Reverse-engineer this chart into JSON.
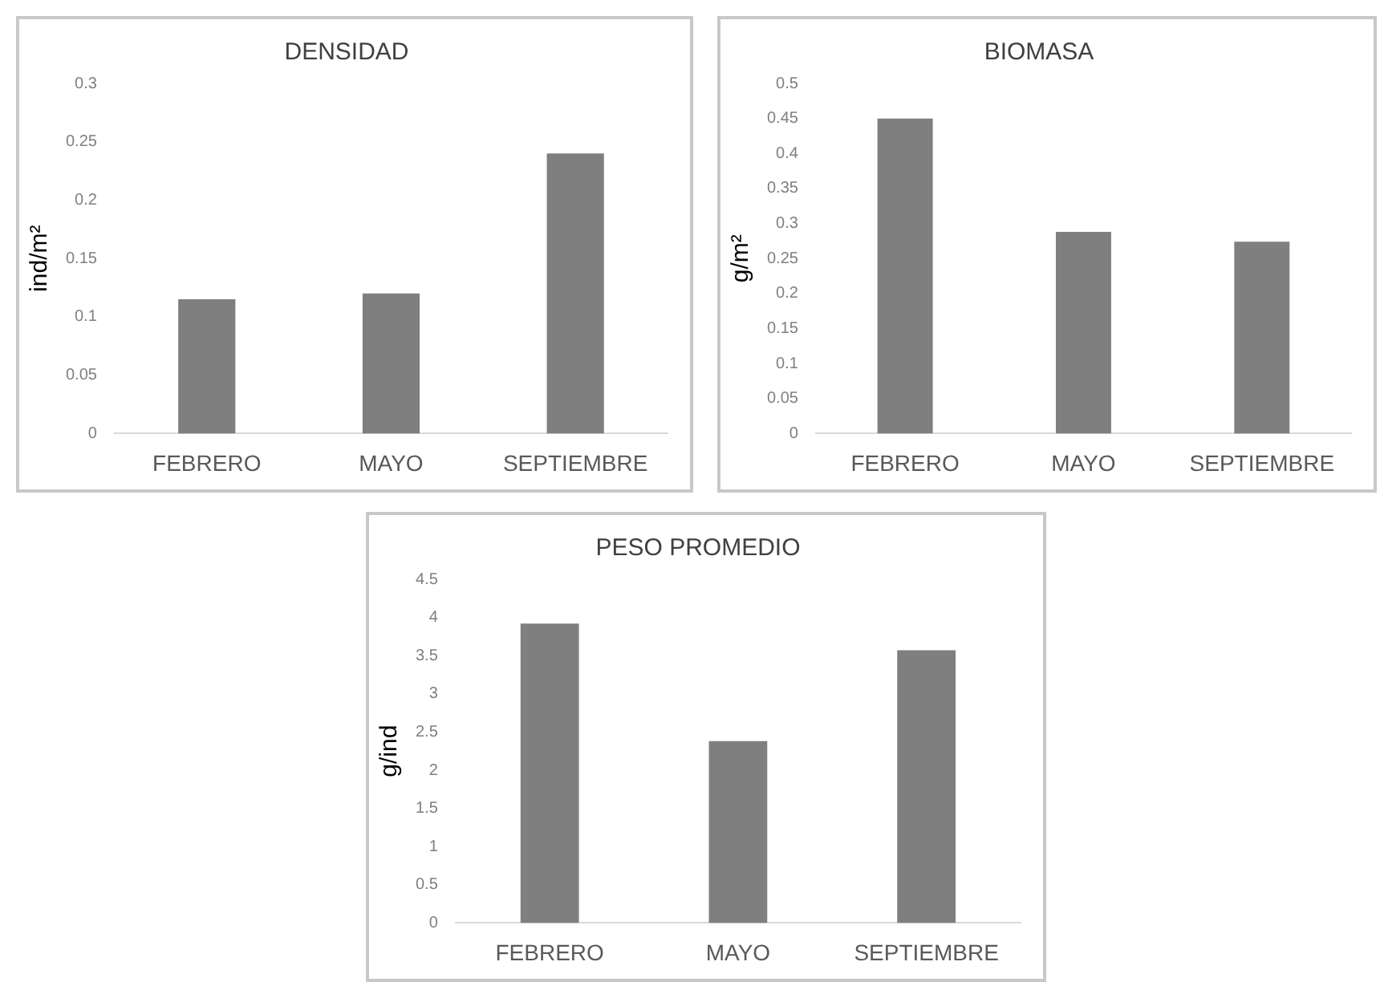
{
  "chart_data": [
    {
      "type": "bar",
      "title": "DENSIDAD",
      "ylabel": "ind/m²",
      "categories": [
        "FEBRERO",
        "MAYO",
        "SEPTIEMBRE"
      ],
      "values": [
        0.115,
        0.12,
        0.24
      ],
      "color": "#7f7f7f",
      "ylim": [
        0,
        0.3
      ],
      "yticks": [
        0,
        0.05,
        0.1,
        0.15,
        0.2,
        0.25,
        0.3
      ],
      "grid": false,
      "legend": false
    },
    {
      "type": "bar",
      "title": "BIOMASA",
      "ylabel": "g/m²",
      "categories": [
        "FEBRERO",
        "MAYO",
        "SEPTIEMBRE"
      ],
      "values": [
        0.45,
        0.288,
        0.274
      ],
      "color": "#7f7f7f",
      "ylim": [
        0,
        0.5
      ],
      "yticks": [
        0,
        0.05,
        0.1,
        0.15,
        0.2,
        0.25,
        0.3,
        0.35,
        0.4,
        0.45,
        0.5
      ],
      "grid": false,
      "legend": false
    },
    {
      "type": "bar",
      "title": "PESO PROMEDIO",
      "ylabel": "g/ind",
      "categories": [
        "FEBRERO",
        "MAYO",
        "SEPTIEMBRE"
      ],
      "values": [
        3.92,
        2.38,
        3.57
      ],
      "color": "#7f7f7f",
      "ylim": [
        0,
        4.5
      ],
      "yticks": [
        0,
        0.5,
        1,
        1.5,
        2,
        2.5,
        3,
        3.5,
        4,
        4.5
      ],
      "grid": false,
      "legend": false
    }
  ]
}
